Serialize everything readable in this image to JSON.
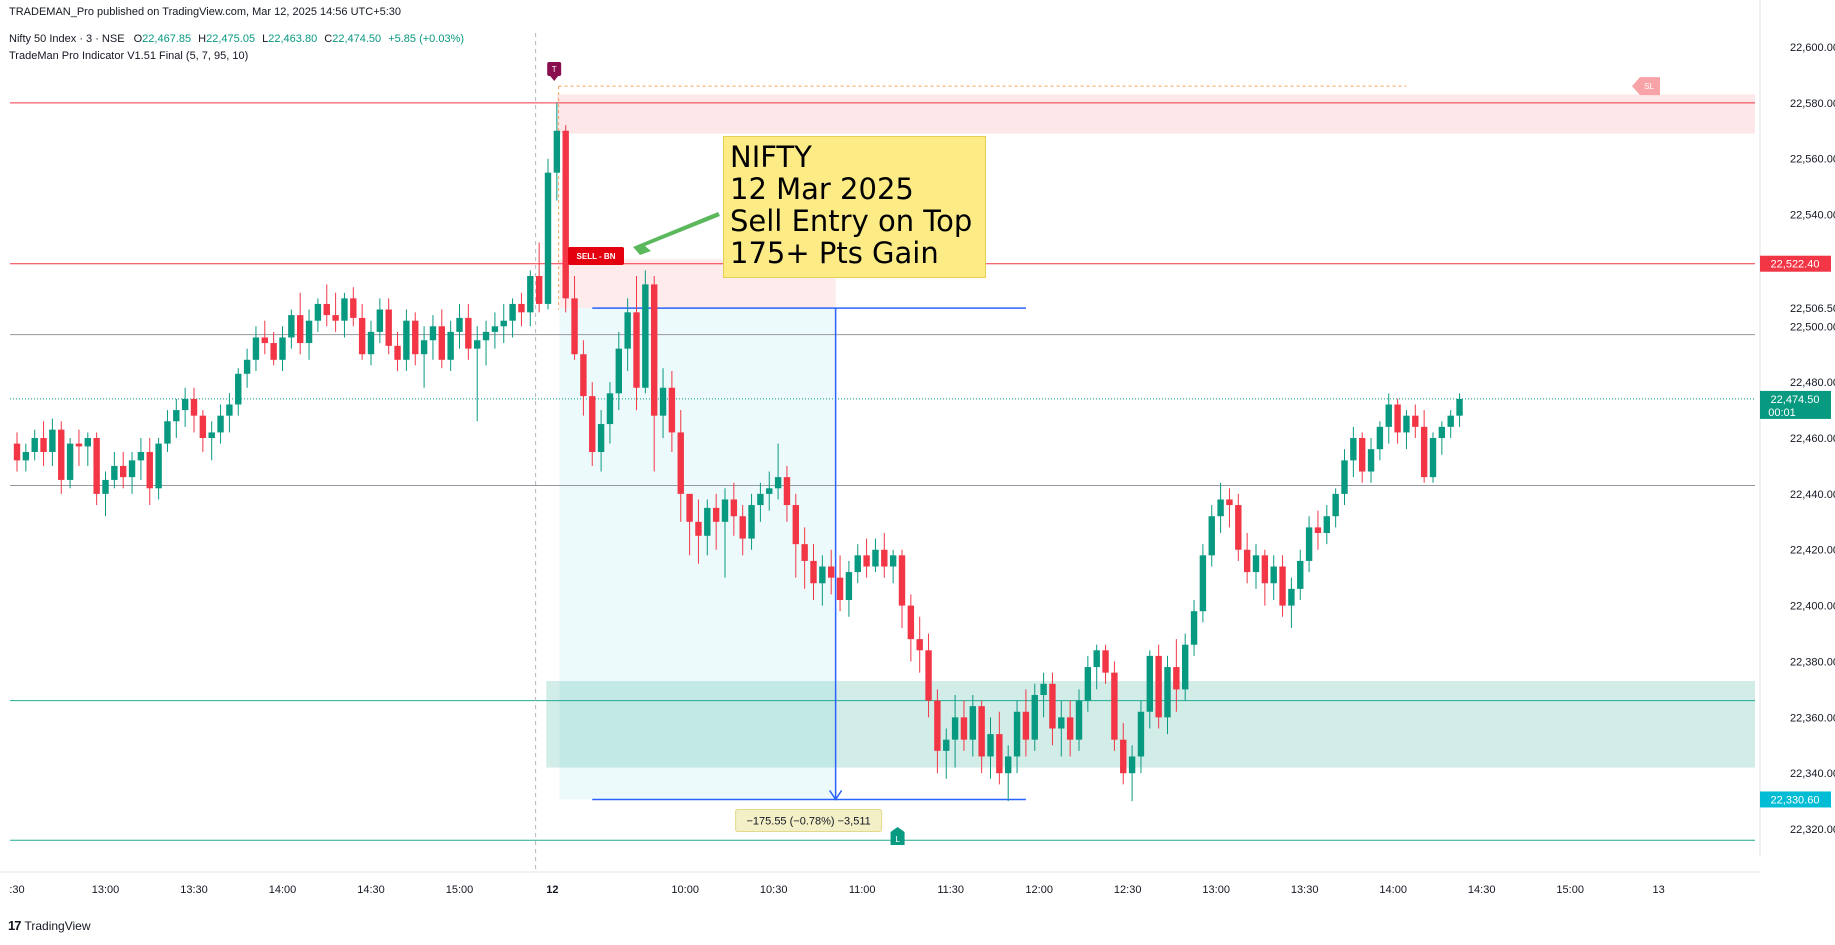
{
  "header": {
    "published": "TRADEMAN_Pro published on TradingView.com, Mar 12, 2025 14:56 UTC+5:30",
    "symbol": "Nifty 50 Index · 3 · NSE",
    "ohlc": {
      "o_label": "O",
      "o": "22,467.85",
      "h_label": "H",
      "h": "22,475.05",
      "l_label": "L",
      "l": "22,463.80",
      "c_label": "C",
      "c": "22,474.50",
      "change": "+5.85 (+0.03%)"
    },
    "indicator": "TradeMan Pro Indicator V1.51 Final (5, 7, 95, 10)"
  },
  "callout": {
    "line1": "NIFTY",
    "line2": "12 Mar 2025",
    "line3": "Sell Entry on Top",
    "line4": "175+ Pts Gain"
  },
  "markers": {
    "sell_label": "SELL - BN",
    "sl_label": "SL",
    "t_label": "T",
    "l_label": "L",
    "measure_label": "−175.55 (−0.78%) −3,511"
  },
  "price_badges": {
    "sell_level": "22,522.40",
    "last_price": "22,474.50",
    "countdown": "00:01",
    "low_level": "22,330.60"
  },
  "footer": {
    "brand": "TradingView"
  },
  "colors": {
    "up": "#089981",
    "down": "#f23645",
    "accent_blue": "#2962ff",
    "last_price": "#089981",
    "low_badge": "#00bcd4",
    "callout_bg": "#fdeb86"
  },
  "chart_data": {
    "type": "candlestick",
    "title": "",
    "ylim": [
      22310,
      22605
    ],
    "y_ticks": [
      22320,
      22340,
      22360,
      22380,
      22400,
      22420,
      22440,
      22460,
      22480,
      22500,
      22506.5,
      22540,
      22560,
      22580,
      22600
    ],
    "y_tick_labels": [
      "22,320.00",
      "22,340.00",
      "22,360.00",
      "22,380.00",
      "22,400.00",
      "22,420.00",
      "22,440.00",
      "22,460.00",
      "22,480.00",
      "22,500.00",
      "22,506.50",
      "22,540.00",
      "22,560.00",
      "22,580.00",
      "22,600.00"
    ],
    "x_ticks": [
      {
        "label": ":30",
        "i": 0
      },
      {
        "label": "13:00",
        "i": 10
      },
      {
        "label": "13:30",
        "i": 20
      },
      {
        "label": "14:00",
        "i": 30
      },
      {
        "label": "14:30",
        "i": 40
      },
      {
        "label": "15:00",
        "i": 50
      },
      {
        "label": "12",
        "i": 60.5
      },
      {
        "label": "10:00",
        "i": 75.5
      },
      {
        "label": "10:30",
        "i": 85.5
      },
      {
        "label": "11:00",
        "i": 95.5
      },
      {
        "label": "11:30",
        "i": 105.5
      },
      {
        "label": "12:00",
        "i": 115.5
      },
      {
        "label": "12:30",
        "i": 125.5
      },
      {
        "label": "13:00",
        "i": 135.5
      },
      {
        "label": "13:30",
        "i": 145.5
      },
      {
        "label": "14:00",
        "i": 155.5
      },
      {
        "label": "14:30",
        "i": 165.5
      },
      {
        "label": "15:00",
        "i": 175.5
      },
      {
        "label": "13",
        "i": 185.5
      }
    ],
    "horizontal_levels": [
      {
        "value": 22580,
        "color": "#f23645"
      },
      {
        "value": 22522.4,
        "color": "#f23645"
      },
      {
        "value": 22497,
        "color": "#9598a1"
      },
      {
        "value": 22443,
        "color": "#9598a1"
      },
      {
        "value": 22366,
        "color": "#22ab94"
      },
      {
        "value": 22316,
        "color": "#22ab94"
      }
    ],
    "zones": [
      {
        "kind": "supply",
        "from": 22569,
        "to": 22583,
        "color": "rgba(242,54,69,0.12)"
      },
      {
        "kind": "demand",
        "from": 22342,
        "to": 22373,
        "color": "rgba(8,153,129,0.18)"
      }
    ],
    "ohlc": [
      [
        22458,
        22462,
        22448,
        22452
      ],
      [
        22452,
        22458,
        22448,
        22455
      ],
      [
        22455,
        22463,
        22452,
        22460
      ],
      [
        22460,
        22466,
        22450,
        22455
      ],
      [
        22455,
        22467,
        22450,
        22463
      ],
      [
        22463,
        22466,
        22440,
        22445
      ],
      [
        22445,
        22460,
        22442,
        22458
      ],
      [
        22458,
        22463,
        22450,
        22457
      ],
      [
        22457,
        22462,
        22450,
        22460
      ],
      [
        22460,
        22462,
        22436,
        22440
      ],
      [
        22440,
        22448,
        22432,
        22445
      ],
      [
        22445,
        22455,
        22442,
        22450
      ],
      [
        22450,
        22455,
        22442,
        22446
      ],
      [
        22446,
        22455,
        22440,
        22452
      ],
      [
        22452,
        22460,
        22445,
        22455
      ],
      [
        22455,
        22460,
        22436,
        22442
      ],
      [
        22442,
        22460,
        22438,
        22458
      ],
      [
        22458,
        22470,
        22455,
        22466
      ],
      [
        22466,
        22474,
        22460,
        22470
      ],
      [
        22470,
        22478,
        22464,
        22474
      ],
      [
        22474,
        22478,
        22462,
        22468
      ],
      [
        22468,
        22470,
        22455,
        22460
      ],
      [
        22460,
        22466,
        22452,
        22462
      ],
      [
        22462,
        22472,
        22458,
        22468
      ],
      [
        22468,
        22476,
        22462,
        22472
      ],
      [
        22472,
        22485,
        22468,
        22483
      ],
      [
        22483,
        22492,
        22478,
        22488
      ],
      [
        22488,
        22500,
        22484,
        22496
      ],
      [
        22496,
        22502,
        22490,
        22494
      ],
      [
        22494,
        22498,
        22486,
        22488
      ],
      [
        22488,
        22500,
        22484,
        22496
      ],
      [
        22496,
        22506,
        22492,
        22504
      ],
      [
        22504,
        22512,
        22490,
        22494
      ],
      [
        22494,
        22506,
        22488,
        22502
      ],
      [
        22502,
        22510,
        22498,
        22508
      ],
      [
        22508,
        22515,
        22500,
        22504
      ],
      [
        22504,
        22512,
        22498,
        22502
      ],
      [
        22502,
        22512,
        22496,
        22510
      ],
      [
        22510,
        22514,
        22500,
        22503
      ],
      [
        22503,
        22508,
        22488,
        22490
      ],
      [
        22490,
        22502,
        22486,
        22498
      ],
      [
        22498,
        22510,
        22494,
        22506
      ],
      [
        22506,
        22510,
        22490,
        22493
      ],
      [
        22493,
        22498,
        22484,
        22488
      ],
      [
        22488,
        22506,
        22484,
        22502
      ],
      [
        22502,
        22505,
        22486,
        22490
      ],
      [
        22490,
        22500,
        22478,
        22495
      ],
      [
        22495,
        22504,
        22488,
        22500
      ],
      [
        22500,
        22506,
        22485,
        22488
      ],
      [
        22488,
        22502,
        22484,
        22498
      ],
      [
        22498,
        22508,
        22492,
        22503
      ],
      [
        22503,
        22508,
        22488,
        22492
      ],
      [
        22492,
        22500,
        22466,
        22495
      ],
      [
        22495,
        22502,
        22486,
        22498
      ],
      [
        22498,
        22505,
        22492,
        22500
      ],
      [
        22500,
        22508,
        22494,
        22502
      ],
      [
        22502,
        22510,
        22496,
        22508
      ],
      [
        22508,
        22512,
        22500,
        22505
      ],
      [
        22505,
        22520,
        22500,
        22518
      ],
      [
        22518,
        22530,
        22505,
        22508
      ],
      [
        22508,
        22560,
        22506,
        22555
      ],
      [
        22555,
        22580,
        22545,
        22570
      ],
      [
        22570,
        22572,
        22505,
        22510
      ],
      [
        22510,
        22518,
        22488,
        22490
      ],
      [
        22490,
        22495,
        22468,
        22475
      ],
      [
        22475,
        22480,
        22450,
        22455
      ],
      [
        22455,
        22470,
        22448,
        22465
      ],
      [
        22465,
        22480,
        22458,
        22476
      ],
      [
        22476,
        22498,
        22470,
        22492
      ],
      [
        22492,
        22510,
        22484,
        22505
      ],
      [
        22505,
        22518,
        22470,
        22478
      ],
      [
        22478,
        22520,
        22476,
        22515
      ],
      [
        22515,
        22518,
        22448,
        22468
      ],
      [
        22468,
        22485,
        22460,
        22478
      ],
      [
        22478,
        22484,
        22455,
        22462
      ],
      [
        22462,
        22470,
        22430,
        22440
      ],
      [
        22440,
        22440,
        22418,
        22430
      ],
      [
        22430,
        22438,
        22415,
        22425
      ],
      [
        22425,
        22438,
        22418,
        22435
      ],
      [
        22435,
        22440,
        22420,
        22430
      ],
      [
        22430,
        22442,
        22410,
        22438
      ],
      [
        22438,
        22444,
        22425,
        22432
      ],
      [
        22432,
        22436,
        22418,
        22424
      ],
      [
        22424,
        22440,
        22420,
        22436
      ],
      [
        22436,
        22444,
        22430,
        22440
      ],
      [
        22440,
        22448,
        22434,
        22442
      ],
      [
        22442,
        22458,
        22438,
        22446
      ],
      [
        22446,
        22450,
        22430,
        22436
      ],
      [
        22436,
        22440,
        22410,
        22422
      ],
      [
        22422,
        22428,
        22406,
        22416
      ],
      [
        22416,
        22422,
        22402,
        22408
      ],
      [
        22408,
        22418,
        22400,
        22414
      ],
      [
        22414,
        22420,
        22404,
        22410
      ],
      [
        22410,
        22418,
        22398,
        22402
      ],
      [
        22402,
        22416,
        22396,
        22412
      ],
      [
        22412,
        22422,
        22408,
        22418
      ],
      [
        22418,
        22424,
        22410,
        22414
      ],
      [
        22414,
        22424,
        22412,
        22420
      ],
      [
        22420,
        22426,
        22410,
        22414
      ],
      [
        22414,
        22420,
        22408,
        22418
      ],
      [
        22418,
        22420,
        22392,
        22400
      ],
      [
        22400,
        22404,
        22380,
        22388
      ],
      [
        22388,
        22396,
        22376,
        22384
      ],
      [
        22384,
        22390,
        22360,
        22366
      ],
      [
        22366,
        22370,
        22340,
        22348
      ],
      [
        22348,
        22356,
        22338,
        22352
      ],
      [
        22352,
        22368,
        22342,
        22360
      ],
      [
        22360,
        22366,
        22348,
        22352
      ],
      [
        22352,
        22368,
        22346,
        22364
      ],
      [
        22364,
        22366,
        22340,
        22346
      ],
      [
        22346,
        22360,
        22338,
        22354
      ],
      [
        22354,
        22362,
        22336,
        22340
      ],
      [
        22340,
        22350,
        22330,
        22346
      ],
      [
        22346,
        22366,
        22340,
        22362
      ],
      [
        22362,
        22370,
        22346,
        22352
      ],
      [
        22352,
        22372,
        22348,
        22368
      ],
      [
        22368,
        22376,
        22360,
        22372
      ],
      [
        22372,
        22376,
        22350,
        22356
      ],
      [
        22356,
        22366,
        22346,
        22360
      ],
      [
        22360,
        22366,
        22346,
        22352
      ],
      [
        22352,
        22370,
        22348,
        22366
      ],
      [
        22366,
        22382,
        22362,
        22378
      ],
      [
        22378,
        22386,
        22370,
        22384
      ],
      [
        22384,
        22386,
        22372,
        22376
      ],
      [
        22376,
        22380,
        22348,
        22352
      ],
      [
        22352,
        22358,
        22336,
        22340
      ],
      [
        22340,
        22350,
        22330,
        22346
      ],
      [
        22346,
        22366,
        22340,
        22362
      ],
      [
        22362,
        22384,
        22356,
        22382
      ],
      [
        22382,
        22386,
        22356,
        22360
      ],
      [
        22360,
        22382,
        22354,
        22378
      ],
      [
        22378,
        22388,
        22362,
        22370
      ],
      [
        22370,
        22390,
        22366,
        22386
      ],
      [
        22386,
        22402,
        22382,
        22398
      ],
      [
        22398,
        22422,
        22394,
        22418
      ],
      [
        22418,
        22436,
        22414,
        22432
      ],
      [
        22432,
        22444,
        22426,
        22438
      ],
      [
        22438,
        22442,
        22428,
        22436
      ],
      [
        22436,
        22440,
        22416,
        22420
      ],
      [
        22420,
        22426,
        22408,
        22412
      ],
      [
        22412,
        22422,
        22406,
        22418
      ],
      [
        22418,
        22420,
        22400,
        22408
      ],
      [
        22408,
        22418,
        22402,
        22414
      ],
      [
        22414,
        22418,
        22396,
        22400
      ],
      [
        22400,
        22410,
        22392,
        22406
      ],
      [
        22406,
        22420,
        22402,
        22416
      ],
      [
        22416,
        22432,
        22412,
        22428
      ],
      [
        22428,
        22434,
        22420,
        22426
      ],
      [
        22426,
        22436,
        22422,
        22432
      ],
      [
        22432,
        22442,
        22428,
        22440
      ],
      [
        22440,
        22456,
        22436,
        22452
      ],
      [
        22452,
        22464,
        22446,
        22460
      ],
      [
        22460,
        22462,
        22444,
        22448
      ],
      [
        22448,
        22460,
        22444,
        22456
      ],
      [
        22456,
        22466,
        22452,
        22464
      ],
      [
        22464,
        22476,
        22458,
        22472
      ],
      [
        22472,
        22474,
        22458,
        22462
      ],
      [
        22462,
        22470,
        22456,
        22468
      ],
      [
        22468,
        22472,
        22460,
        22464
      ],
      [
        22464,
        22470,
        22444,
        22446
      ],
      [
        22446,
        22462,
        22444,
        22460
      ],
      [
        22460,
        22466,
        22454,
        22464
      ],
      [
        22464,
        22470,
        22460,
        22468
      ],
      [
        22468,
        22476,
        22464,
        22474
      ]
    ],
    "entry": {
      "value": 22506.5,
      "label": "SELL - BN"
    },
    "target": {
      "value": 22330.6
    },
    "stop_loss": {
      "value": 22586
    }
  }
}
